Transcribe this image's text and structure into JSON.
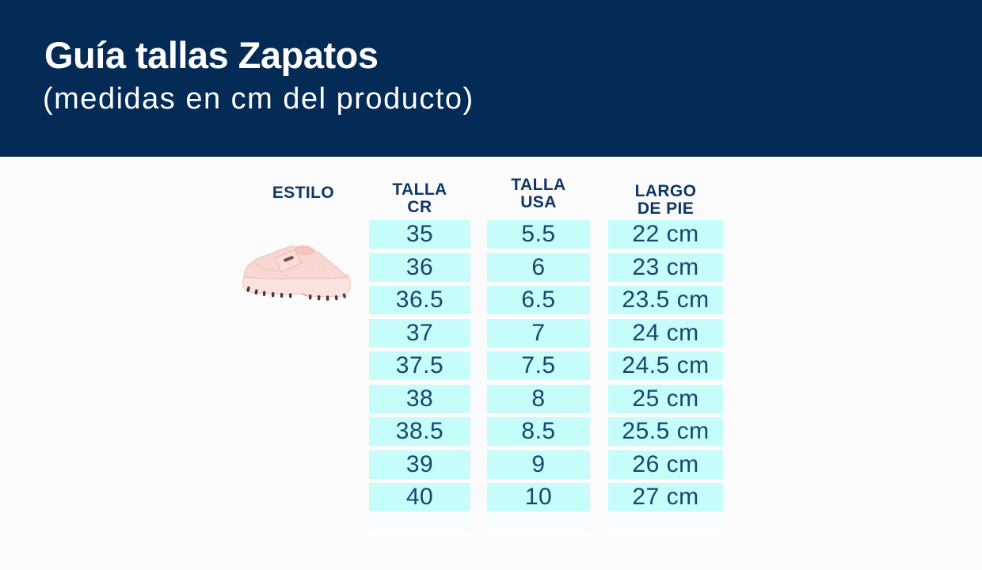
{
  "header": {
    "title": "Guía tallas Zapatos",
    "subtitle": "(medidas en cm del producto)"
  },
  "colors": {
    "banner_navy": "#042a56",
    "cell_cyan": "#c6fcf9",
    "header_text_navy": "#0e3765",
    "cell_text_navy": "#17466e",
    "shoe_pink": "#f8d7d2"
  },
  "table": {
    "headers": {
      "estilo": "ESTILO",
      "talla_cr": "TALLA\nCR",
      "talla_usa": "TALLA\nUSA",
      "largo_de_pie": "LARGO\nDE PIE"
    },
    "rows": [
      {
        "talla_cr": "35",
        "talla_usa": "5.5",
        "largo_de_pie": "22 cm"
      },
      {
        "talla_cr": "36",
        "talla_usa": "6",
        "largo_de_pie": "23 cm"
      },
      {
        "talla_cr": "36.5",
        "talla_usa": "6.5",
        "largo_de_pie": "23.5 cm"
      },
      {
        "talla_cr": "37",
        "talla_usa": "7",
        "largo_de_pie": "24 cm"
      },
      {
        "talla_cr": "37.5",
        "talla_usa": "7.5",
        "largo_de_pie": "24.5 cm"
      },
      {
        "talla_cr": "38",
        "talla_usa": "8",
        "largo_de_pie": "25 cm"
      },
      {
        "talla_cr": "38.5",
        "talla_usa": "8.5",
        "largo_de_pie": "25.5 cm"
      },
      {
        "talla_cr": "39",
        "talla_usa": "9",
        "largo_de_pie": "26 cm"
      },
      {
        "talla_cr": "40",
        "talla_usa": "10",
        "largo_de_pie": "27 cm"
      }
    ]
  },
  "estilo_image": {
    "icon": "pink-loafer-shoe-icon",
    "description": "pink chunky-sole loafer, side view facing left"
  }
}
